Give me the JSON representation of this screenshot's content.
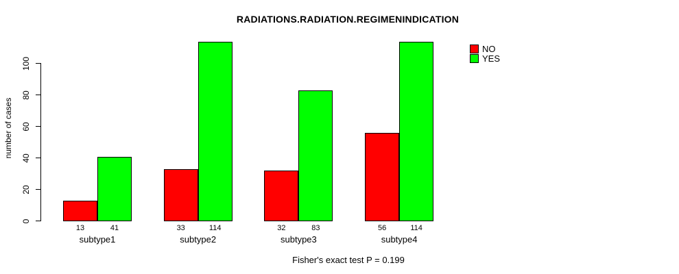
{
  "chart_data": {
    "type": "bar",
    "title": "RADIATIONS.RADIATION.REGIMENINDICATION",
    "xlabel": "",
    "ylabel": "number of cases",
    "categories": [
      "subtype1",
      "subtype2",
      "subtype3",
      "subtype4"
    ],
    "series": [
      {
        "name": "NO",
        "color": "#ff0000",
        "values": [
          13,
          33,
          32,
          56
        ]
      },
      {
        "name": "YES",
        "color": "#00ff00",
        "values": [
          41,
          114,
          83,
          114
        ]
      }
    ],
    "yticks": [
      0,
      20,
      40,
      60,
      80,
      100
    ],
    "ylim": [
      0,
      115
    ],
    "grid": false,
    "bar_value_labels_shown": true,
    "legend_position": "top-right",
    "annotation": "Fisher's exact test P = 0.199"
  }
}
